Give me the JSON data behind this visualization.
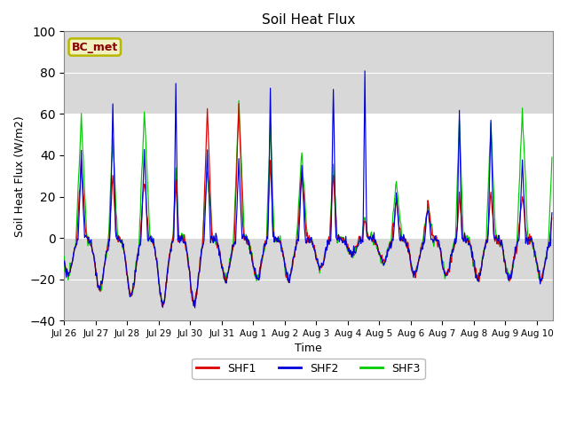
{
  "title": "Soil Heat Flux",
  "xlabel": "Time",
  "ylabel": "Soil Heat Flux (W/m2)",
  "ylim": [
    -40,
    100
  ],
  "yticks": [
    -40,
    -20,
    0,
    20,
    40,
    60,
    80,
    100
  ],
  "bg_inner": "#d8d8d8",
  "bg_outer": "#ffffff",
  "line_colors": [
    "#dd0000",
    "#0000dd",
    "#00cc00"
  ],
  "line_labels": [
    "SHF1",
    "SHF2",
    "SHF3"
  ],
  "annotation_text": "BC_met",
  "annotation_color": "#8b0000",
  "annotation_bg": "#f0f0c0",
  "annotation_border": "#b8b800",
  "white_band_low": 0,
  "white_band_high": 60,
  "tick_labels": [
    "Jul 26",
    "Jul 27",
    "Jul 28",
    "Jul 29",
    "Jul 30",
    "Jul 31",
    "Aug 1",
    "Aug 2",
    "Aug 3",
    "Aug 4",
    "Aug 5",
    "Aug 6",
    "Aug 7",
    "Aug 8",
    "Aug 9",
    "Aug 10"
  ],
  "total_hours": 372,
  "dt": 0.5
}
